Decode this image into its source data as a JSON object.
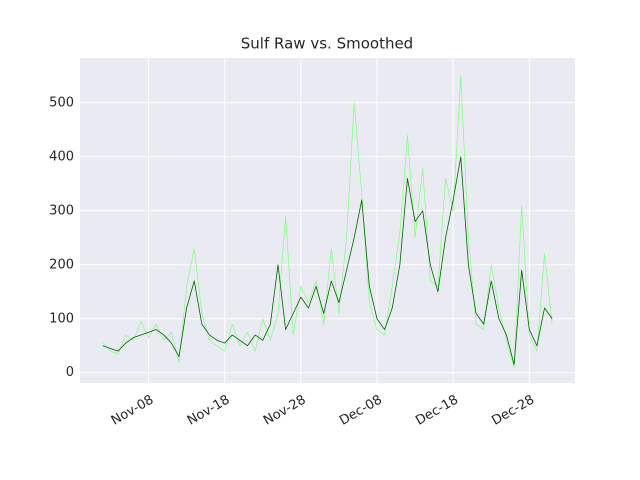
{
  "chart_data": {
    "type": "line",
    "title": "Sulf Raw vs. Smoothed",
    "x": [
      "Nov-02",
      "Nov-03",
      "Nov-04",
      "Nov-05",
      "Nov-06",
      "Nov-07",
      "Nov-08",
      "Nov-09",
      "Nov-10",
      "Nov-11",
      "Nov-12",
      "Nov-13",
      "Nov-14",
      "Nov-15",
      "Nov-16",
      "Nov-17",
      "Nov-18",
      "Nov-19",
      "Nov-20",
      "Nov-21",
      "Nov-22",
      "Nov-23",
      "Nov-24",
      "Nov-25",
      "Nov-26",
      "Nov-27",
      "Nov-28",
      "Nov-29",
      "Nov-30",
      "Dec-01",
      "Dec-02",
      "Dec-03",
      "Dec-04",
      "Dec-05",
      "Dec-06",
      "Dec-07",
      "Dec-08",
      "Dec-09",
      "Dec-10",
      "Dec-11",
      "Dec-12",
      "Dec-13",
      "Dec-14",
      "Dec-15",
      "Dec-16",
      "Dec-17",
      "Dec-18",
      "Dec-19",
      "Dec-20",
      "Dec-21",
      "Dec-22",
      "Dec-23",
      "Dec-24",
      "Dec-25",
      "Dec-26",
      "Dec-27",
      "Dec-28",
      "Dec-29",
      "Dec-30",
      "Dec-31"
    ],
    "series": [
      {
        "color": "#7dff7d",
        "width": 0.7,
        "values": [
          55,
          40,
          35,
          70,
          60,
          95,
          65,
          90,
          60,
          75,
          20,
          160,
          230,
          110,
          60,
          50,
          40,
          90,
          50,
          75,
          40,
          100,
          60,
          110,
          290,
          70,
          160,
          130,
          170,
          90,
          230,
          110,
          250,
          500,
          330,
          130,
          80,
          70,
          160,
          260,
          440,
          250,
          380,
          170,
          160,
          360,
          300,
          550,
          250,
          90,
          80,
          200,
          120,
          60,
          10,
          310,
          70,
          40,
          220,
          90
        ]
      },
      {
        "color": "#006400",
        "width": 0.8,
        "values": [
          50,
          45,
          40,
          55,
          65,
          70,
          75,
          80,
          70,
          55,
          30,
          120,
          170,
          90,
          70,
          60,
          55,
          70,
          60,
          50,
          70,
          60,
          90,
          200,
          80,
          110,
          140,
          120,
          160,
          110,
          170,
          130,
          190,
          250,
          320,
          160,
          100,
          80,
          120,
          200,
          360,
          280,
          300,
          200,
          150,
          250,
          320,
          400,
          200,
          110,
          90,
          170,
          100,
          70,
          15,
          190,
          80,
          50,
          120,
          100
        ]
      }
    ],
    "xlim": [
      "Oct-30",
      "Jan-03"
    ],
    "xticks": [
      "Nov-08",
      "Nov-18",
      "Nov-28",
      "Dec-08",
      "Dec-18",
      "Dec-28"
    ],
    "ylim": [
      -19,
      583
    ],
    "yticks": [
      0,
      100,
      200,
      300,
      400,
      500
    ],
    "grid": true
  }
}
